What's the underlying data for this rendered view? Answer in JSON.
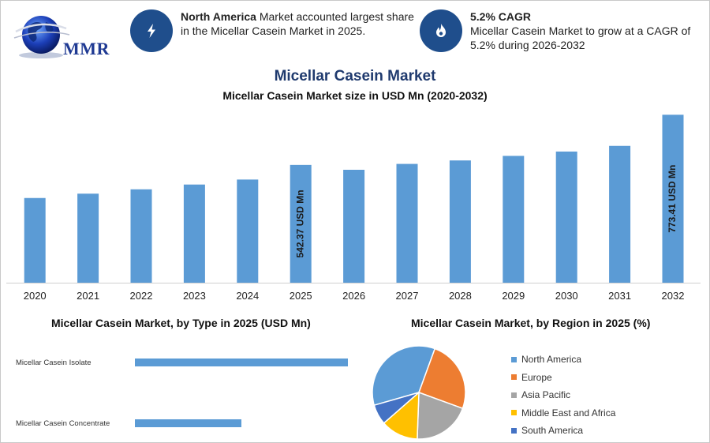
{
  "brand": {
    "logo_text": "MMR"
  },
  "highlights": [
    {
      "bold": "North America",
      "text": " Market accounted largest share in the Micellar Casein Market in 2025.",
      "icon": "lightning-icon"
    },
    {
      "bold": "5.2% CAGR",
      "text": "Micellar Casein Market to grow at a CAGR of 5.2% during 2026-2032",
      "icon": "flame-icon"
    }
  ],
  "colors": {
    "bar": "#5b9bd5",
    "icon_circle": "#1f4e8c",
    "title": "#1f3a6e"
  },
  "chart_data": [
    {
      "type": "bar",
      "title": "Micellar Casein Market",
      "subtitle": "Micellar Casein Market size in USD Mn (2020-2032)",
      "categories": [
        "2020",
        "2021",
        "2022",
        "2023",
        "2024",
        "2025",
        "2026",
        "2027",
        "2028",
        "2029",
        "2030",
        "2031",
        "2032"
      ],
      "values": [
        390,
        410,
        430,
        452,
        475,
        542.37,
        520,
        547,
        563,
        584,
        604,
        630,
        773.41
      ],
      "data_labels": [
        {
          "index": 5,
          "text": "542.37 USD Mn"
        },
        {
          "index": 12,
          "text": "773.41 USD Mn"
        }
      ],
      "ylim": [
        0,
        800
      ],
      "grid": false,
      "legend": "none"
    },
    {
      "type": "bar",
      "orientation": "horizontal",
      "title": "Micellar Casein Market, by Type in 2025 (USD Mn)",
      "categories": [
        "Micellar Casein Isolate",
        "Micellar Casein Concentrate"
      ],
      "values": [
        270,
        135
      ],
      "grid": false,
      "legend": "none"
    },
    {
      "type": "pie",
      "title": "Micellar Casein Market, by Region in 2025 (%)",
      "labels": [
        "North America",
        "Europe",
        "Asia Pacific",
        "Middle East and Africa",
        "South America"
      ],
      "values": [
        35,
        25,
        20,
        13,
        7
      ],
      "colors": [
        "#5b9bd5",
        "#ed7d31",
        "#a5a5a5",
        "#ffc000",
        "#4472c4"
      ],
      "legend": "right"
    }
  ]
}
